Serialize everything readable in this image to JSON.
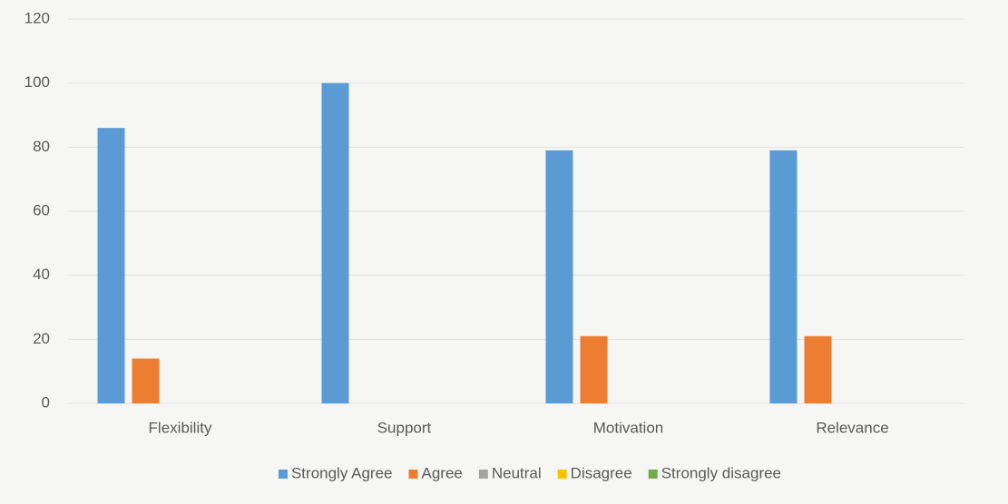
{
  "chart_data": {
    "type": "bar",
    "categories": [
      "Flexibility",
      "Support",
      "Motivation",
      "Relevance"
    ],
    "series": [
      {
        "name": "Strongly Agree",
        "color": "#5b9bd5",
        "values": [
          86,
          100,
          79,
          79
        ]
      },
      {
        "name": "Agree",
        "color": "#ed7d31",
        "values": [
          14,
          0,
          21,
          21
        ]
      },
      {
        "name": "Neutral",
        "color": "#a5a5a5",
        "values": [
          0,
          0,
          0,
          0
        ]
      },
      {
        "name": "Disagree",
        "color": "#ffc000",
        "values": [
          0,
          0,
          0,
          0
        ]
      },
      {
        "name": "Strongly disagree",
        "color": "#70ad47",
        "values": [
          0,
          0,
          0,
          0
        ]
      }
    ],
    "ylim": [
      0,
      120
    ],
    "yticks": [
      0,
      20,
      40,
      60,
      80,
      100,
      120
    ],
    "grid": true,
    "legend": "bottom"
  }
}
